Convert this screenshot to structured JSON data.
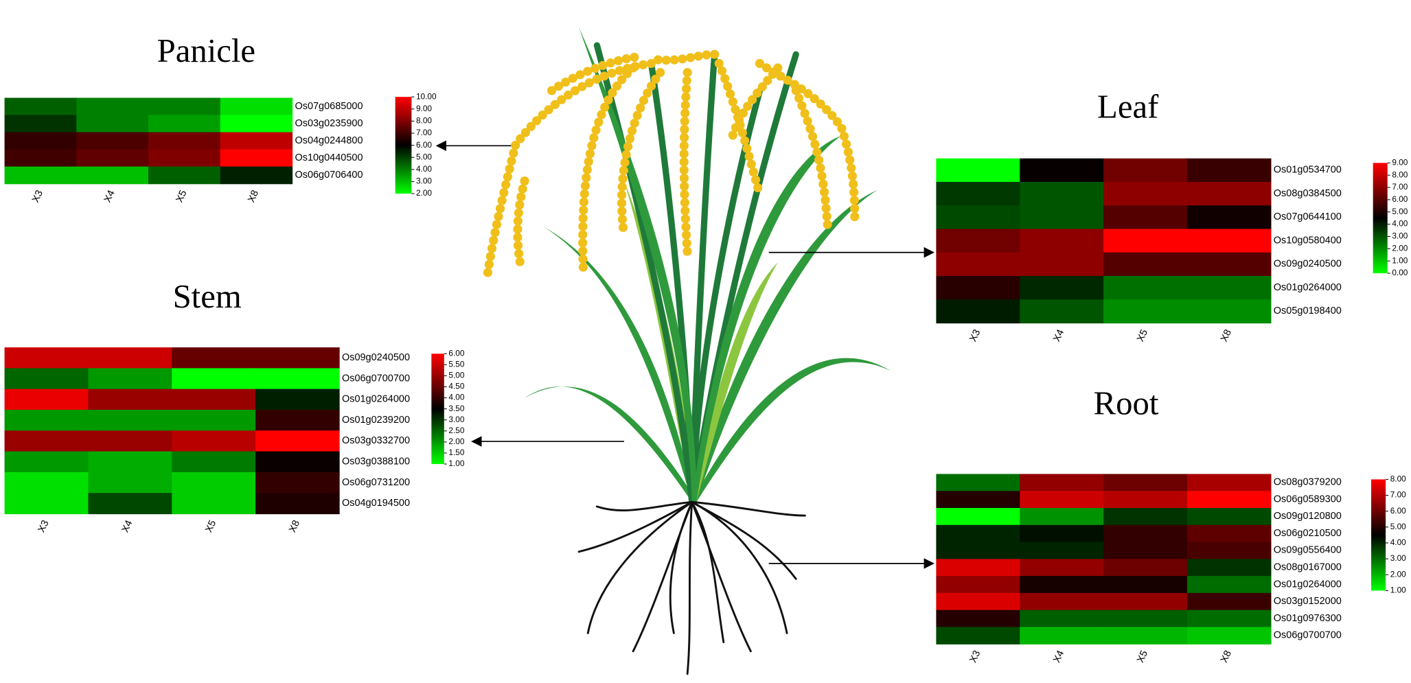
{
  "chart_data": [
    {
      "type": "heatmap",
      "title": "Panicle",
      "rows": [
        "Os07g0685000",
        "Os03g0235900",
        "Os04g0244800",
        "Os10g0440500",
        "Os06g0706400"
      ],
      "columns": [
        "X3",
        "X4",
        "X5",
        "X8"
      ],
      "values": [
        [
          4.5,
          4,
          4,
          2.5
        ],
        [
          5.2,
          4,
          3.5,
          2
        ],
        [
          6.8,
          7.2,
          7.8,
          9
        ],
        [
          7,
          7.5,
          8,
          10
        ],
        [
          3,
          3,
          4.5,
          5.5
        ]
      ],
      "colors": [
        "#00ff00",
        "#000000",
        "#ff0000"
      ],
      "zlim": [
        2,
        10
      ],
      "zticks": [
        {
          "value": 2,
          "label": "2.00"
        },
        {
          "value": 3,
          "label": "3.00"
        },
        {
          "value": 4,
          "label": "4.00"
        },
        {
          "value": 5,
          "label": "5.00"
        },
        {
          "value": 6,
          "label": "6.00"
        },
        {
          "value": 7,
          "label": "7.00"
        },
        {
          "value": 8,
          "label": "8.00"
        },
        {
          "value": 9,
          "label": "9.00"
        },
        {
          "value": 10,
          "label": "10.00"
        }
      ]
    },
    {
      "type": "heatmap",
      "title": "Leaf",
      "rows": [
        "Os01g0534700",
        "Os08g0384500",
        "Os07g0644100",
        "Os10g0580400",
        "Os09g0240500",
        "Os01g0264000",
        "Os05g0198400"
      ],
      "columns": [
        "X3",
        "X4",
        "X5",
        "X8"
      ],
      "values": [
        [
          0,
          4.6,
          6.5,
          5.5
        ],
        [
          3.5,
          3,
          7,
          7
        ],
        [
          3.2,
          3,
          6,
          4.8
        ],
        [
          6.5,
          7,
          9,
          9
        ],
        [
          7,
          7,
          6,
          6
        ],
        [
          5.2,
          3.8,
          2.5,
          2.5
        ],
        [
          4,
          3,
          2,
          2
        ]
      ],
      "colors": [
        "#00ff00",
        "#000000",
        "#ff0000"
      ],
      "zlim": [
        0,
        9
      ],
      "zticks": [
        {
          "value": 0,
          "label": "0.00"
        },
        {
          "value": 1,
          "label": "1.00"
        },
        {
          "value": 2,
          "label": "2.00"
        },
        {
          "value": 3,
          "label": "3.00"
        },
        {
          "value": 4,
          "label": "4.00"
        },
        {
          "value": 5,
          "label": "5.00"
        },
        {
          "value": 6,
          "label": "6.00"
        },
        {
          "value": 7,
          "label": "7.00"
        },
        {
          "value": 8,
          "label": "8.00"
        },
        {
          "value": 9,
          "label": "9.00"
        }
      ]
    },
    {
      "type": "heatmap",
      "title": "Stem",
      "rows": [
        "Os09g0240500",
        "Os06g0700700",
        "Os01g0264000",
        "Os01g0239200",
        "Os03g0332700",
        "Os03g0388100",
        "Os06g0731200",
        "Os04g0194500"
      ],
      "columns": [
        "X3",
        "X4",
        "X5",
        "X8"
      ],
      "values": [
        [
          5.5,
          5.5,
          4.5,
          4.5
        ],
        [
          2.5,
          2,
          1,
          1
        ],
        [
          5.8,
          5,
          5,
          3.2
        ],
        [
          2,
          2,
          2,
          4
        ],
        [
          5,
          5,
          5.3,
          6
        ],
        [
          2,
          1.8,
          2.3,
          3.6
        ],
        [
          1.3,
          1.8,
          1.5,
          4
        ],
        [
          1.3,
          2.8,
          1.5,
          3.8
        ]
      ],
      "colors": [
        "#00ff00",
        "#000000",
        "#ff0000"
      ],
      "zlim": [
        1,
        6
      ],
      "zticks": [
        {
          "value": 1,
          "label": "1.00"
        },
        {
          "value": 1.5,
          "label": "1.50"
        },
        {
          "value": 2,
          "label": "2.00"
        },
        {
          "value": 2.5,
          "label": "2.50"
        },
        {
          "value": 3,
          "label": "3.00"
        },
        {
          "value": 3.5,
          "label": "3.50"
        },
        {
          "value": 4,
          "label": "4.00"
        },
        {
          "value": 4.5,
          "label": "4.50"
        },
        {
          "value": 5,
          "label": "5.00"
        },
        {
          "value": 5.5,
          "label": "5.50"
        },
        {
          "value": 6,
          "label": "6.00"
        }
      ]
    },
    {
      "type": "heatmap",
      "title": "Root",
      "rows": [
        "Os08g0379200",
        "Os06g0589300",
        "Os09g0120800",
        "Os06g0210500",
        "Os09g0556400",
        "Os08g0167000",
        "Os01g0264000",
        "Os03g0152000",
        "Os01g0976300",
        "Os06g0700700"
      ],
      "columns": [
        "X3",
        "X4",
        "X5",
        "X8"
      ],
      "values": [
        [
          3,
          6.5,
          6,
          6.8
        ],
        [
          5,
          7.3,
          7,
          8
        ],
        [
          1,
          2.5,
          3.8,
          3.5
        ],
        [
          4,
          4.3,
          5.2,
          5.8
        ],
        [
          4,
          4,
          5.2,
          5.5
        ],
        [
          7.5,
          6.5,
          6,
          3.8
        ],
        [
          6.5,
          4.8,
          4.8,
          3
        ],
        [
          7.5,
          6.5,
          6.5,
          5.3
        ],
        [
          5,
          3.2,
          3.2,
          3
        ],
        [
          3.5,
          2,
          2,
          1.8
        ]
      ],
      "colors": [
        "#00ff00",
        "#000000",
        "#ff0000"
      ],
      "zlim": [
        1,
        8
      ],
      "zticks": [
        {
          "value": 1,
          "label": "1.00"
        },
        {
          "value": 2,
          "label": "2.00"
        },
        {
          "value": 3,
          "label": "3.00"
        },
        {
          "value": 4,
          "label": "4.00"
        },
        {
          "value": 5,
          "label": "5.00"
        },
        {
          "value": 6,
          "label": "6.00"
        },
        {
          "value": 7,
          "label": "7.00"
        },
        {
          "value": 8,
          "label": "8.00"
        }
      ]
    }
  ]
}
